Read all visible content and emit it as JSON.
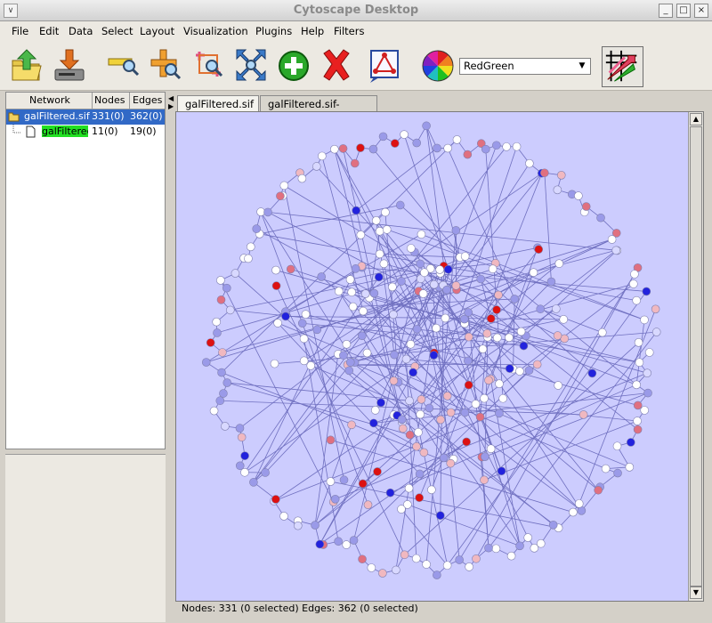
{
  "window": {
    "title": "Cytoscape Desktop"
  },
  "menu": [
    "File",
    "Edit",
    "Data",
    "Select",
    "Layout",
    "Visualization",
    "Plugins",
    "Help",
    "Filters"
  ],
  "toolbar": {
    "attribute_select": "RedGreen"
  },
  "network_tree": {
    "headers": {
      "network": "Network",
      "nodes": "Nodes",
      "edges": "Edges"
    },
    "rows": [
      {
        "name": "galFiltered.sif",
        "nodes": "331(0)",
        "edges": "362(0)"
      },
      {
        "name": "galFiltered.sif->child",
        "nodes": "11(0)",
        "edges": "19(0)"
      }
    ]
  },
  "tabs": [
    "galFiltered.sif",
    "galFiltered.sif->child"
  ],
  "status": "Nodes: 331 (0 selected) Edges: 362 (0 selected)",
  "colors": {
    "canvas_bg": "#ccccfe",
    "node_white": "#ffffff",
    "node_blue": "#2020e0",
    "node_red": "#e00000",
    "edge": "#7070c0",
    "selection": "#3169c6"
  }
}
